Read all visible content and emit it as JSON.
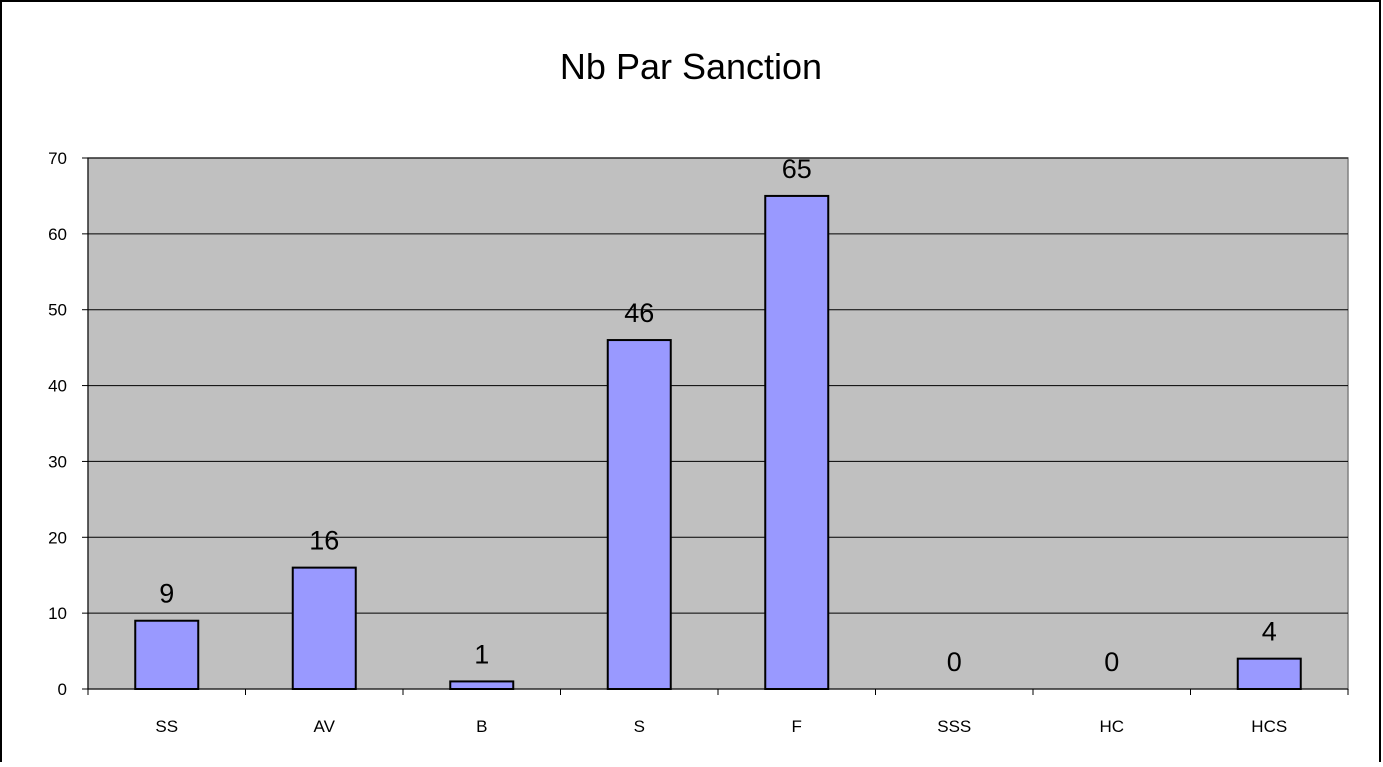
{
  "chart_data": {
    "type": "bar",
    "title": "Nb Par Sanction",
    "xlabel": "",
    "ylabel": "",
    "categories": [
      "SS",
      "AV",
      "B",
      "S",
      "F",
      "SSS",
      "HC",
      "HCS"
    ],
    "values": [
      9,
      16,
      1,
      46,
      65,
      0,
      0,
      4
    ],
    "ylim": [
      0,
      70
    ],
    "yticks": [
      0,
      10,
      20,
      30,
      40,
      50,
      60,
      70
    ],
    "grid": true,
    "legend": "none",
    "show_data_labels": true,
    "colors": {
      "bar_fill": "#9999ff",
      "bar_stroke": "#000000",
      "plot_background": "#c0c0c0",
      "gridline": "#000000",
      "page_background": "#ffffff"
    }
  }
}
